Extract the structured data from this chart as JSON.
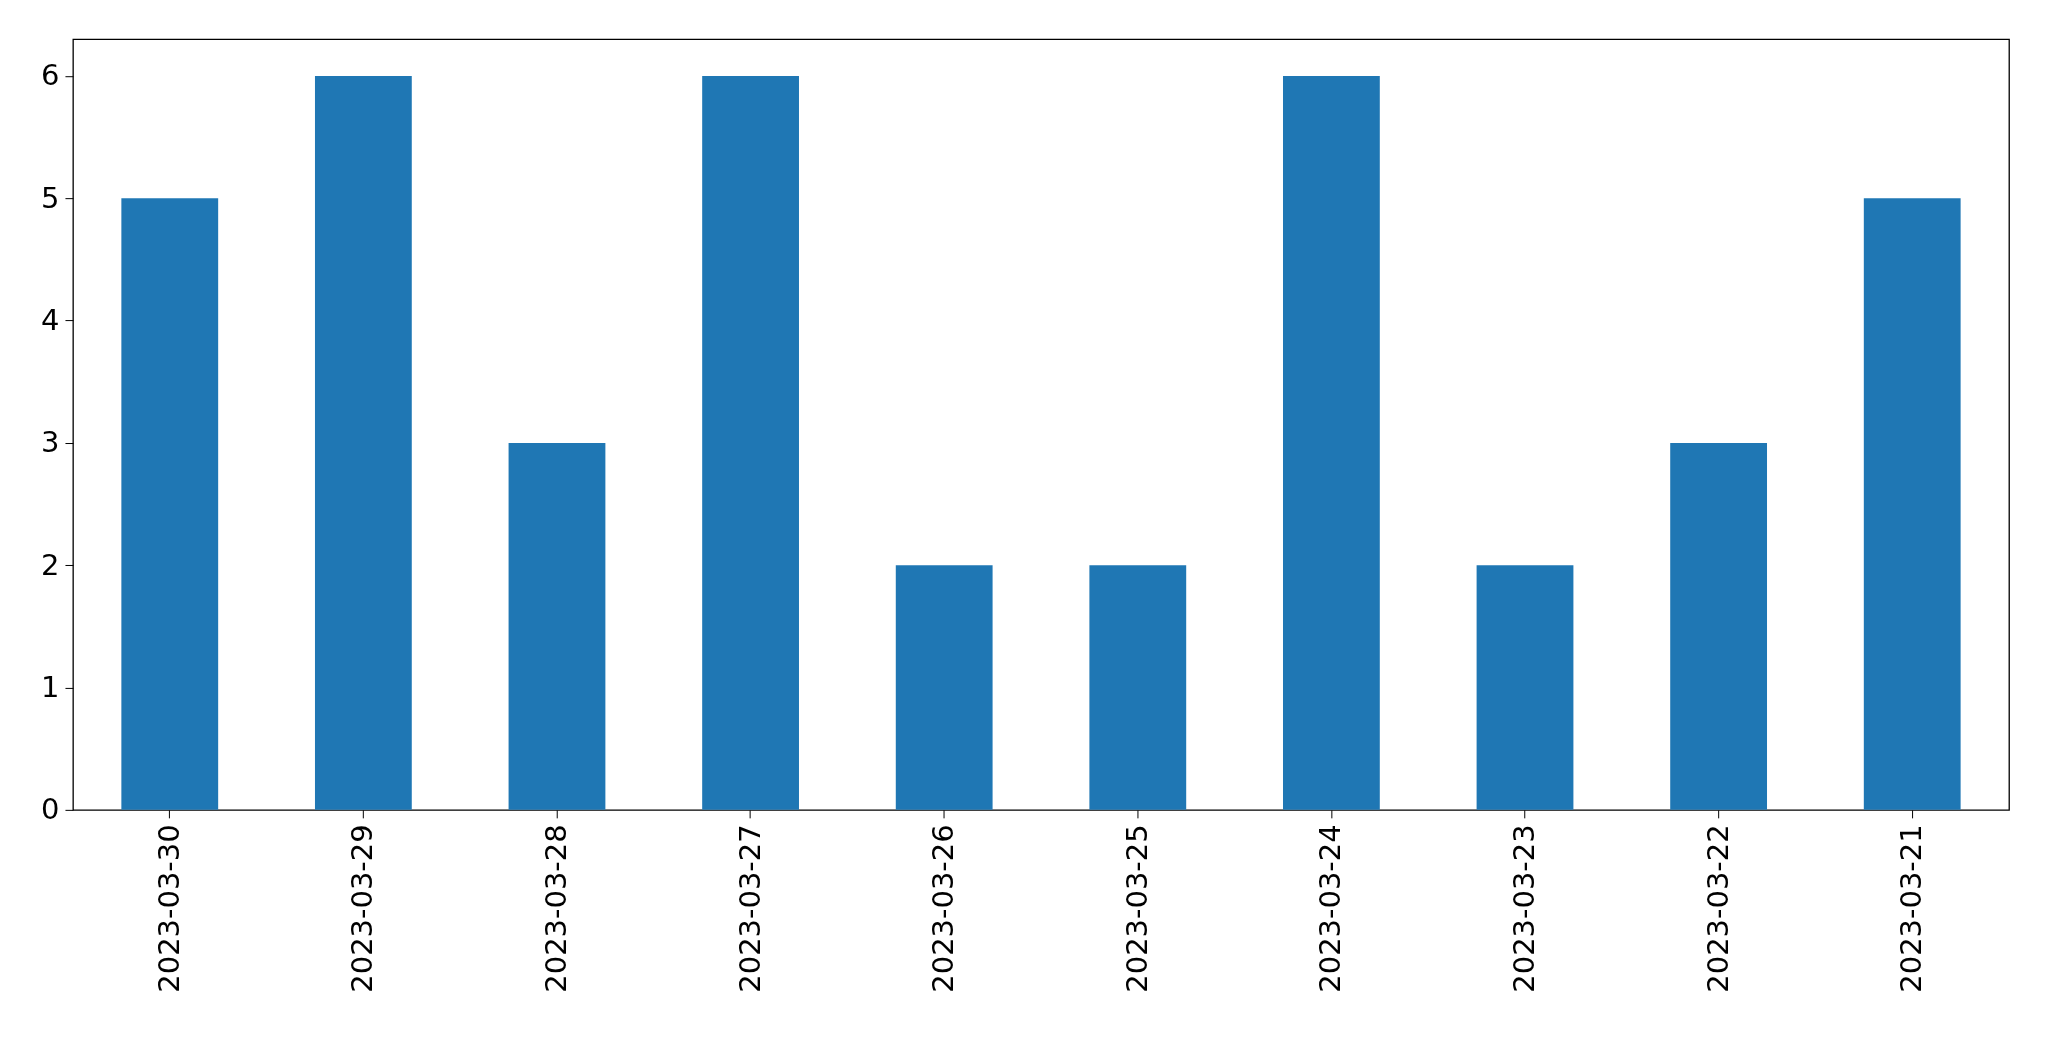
{
  "chart_data": {
    "type": "bar",
    "categories": [
      "2023-03-30",
      "2023-03-29",
      "2023-03-28",
      "2023-03-27",
      "2023-03-26",
      "2023-03-25",
      "2023-03-24",
      "2023-03-23",
      "2023-03-22",
      "2023-03-21"
    ],
    "values": [
      5,
      6,
      3,
      6,
      2,
      2,
      6,
      2,
      3,
      5
    ],
    "color": "#1f77b4",
    "ylim": [
      0,
      6.3
    ],
    "yticks": [
      0,
      1,
      2,
      3,
      4,
      5,
      6
    ],
    "grid": false
  }
}
